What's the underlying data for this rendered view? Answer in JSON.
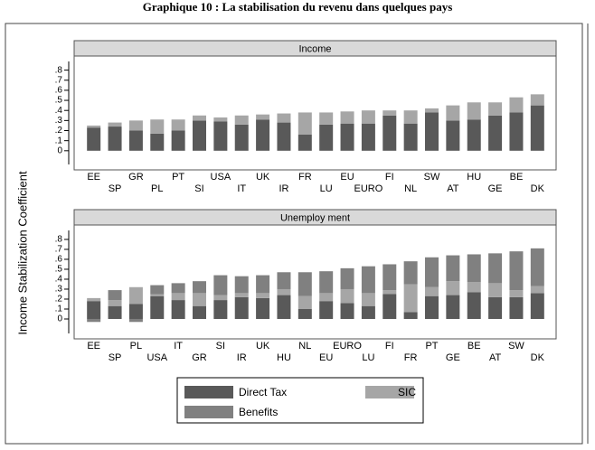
{
  "title": "Graphique 10 : La stabilisation du revenu dans quelques pays",
  "y_label": "Income Stabilization Coefficient",
  "chart_data": [
    {
      "type": "bar",
      "stacked": true,
      "title": "Income",
      "categories": [
        "EE",
        "SP",
        "GR",
        "PL",
        "PT",
        "SI",
        "USA",
        "IT",
        "UK",
        "IR",
        "FR",
        "LU",
        "EU",
        "EURO",
        "FI",
        "NL",
        "SW",
        "AT",
        "HU",
        "GE",
        "BE",
        "DK"
      ],
      "series": [
        {
          "name": "Direct Tax",
          "color": "#595959",
          "values": [
            0.23,
            0.24,
            0.2,
            0.17,
            0.2,
            0.3,
            0.29,
            0.26,
            0.31,
            0.28,
            0.16,
            0.26,
            0.27,
            0.27,
            0.35,
            0.27,
            0.38,
            0.3,
            0.31,
            0.35,
            0.38,
            0.45
          ]
        },
        {
          "name": "SIC",
          "color": "#a6a6a6",
          "values": [
            0.02,
            0.04,
            0.1,
            0.14,
            0.11,
            0.05,
            0.04,
            0.09,
            0.05,
            0.09,
            0.22,
            0.12,
            0.12,
            0.13,
            0.05,
            0.13,
            0.04,
            0.15,
            0.17,
            0.13,
            0.15,
            0.11
          ]
        }
      ],
      "ylim": [
        -0.19,
        0.94
      ],
      "yticks": [
        0,
        {
          "value": 0.1,
          "label": ".1"
        },
        {
          "value": 0.2,
          "label": ".2"
        },
        {
          "value": 0.3,
          "label": ".3"
        },
        {
          "value": 0.4,
          "label": ".4"
        },
        {
          "value": 0.5,
          "label": ".5"
        },
        {
          "value": 0.6,
          "label": ".6"
        },
        {
          "value": 0.7,
          "label": ".7"
        },
        {
          "value": 0.8,
          "label": ".8"
        }
      ]
    },
    {
      "type": "bar",
      "stacked": true,
      "title": "Unemploy ment",
      "categories": [
        "EE",
        "SP",
        "PL",
        "USA",
        "IT",
        "GR",
        "SI",
        "IR",
        "UK",
        "HU",
        "NL",
        "EU",
        "EURO",
        "LU",
        "FI",
        "FR",
        "PT",
        "GE",
        "BE",
        "AT",
        "SW",
        "DK"
      ],
      "series": [
        {
          "name": "Direct Tax",
          "color": "#595959",
          "values": [
            0.18,
            0.13,
            0.15,
            0.23,
            0.19,
            0.13,
            0.19,
            0.22,
            0.21,
            0.24,
            0.1,
            0.18,
            0.16,
            0.13,
            0.25,
            0.07,
            0.23,
            0.24,
            0.27,
            0.22,
            0.22,
            0.26
          ]
        },
        {
          "name": "SIC",
          "color": "#a6a6a6",
          "values": [
            0.03,
            0.06,
            0.17,
            0.02,
            0.07,
            0.13,
            0.05,
            0.04,
            0.05,
            0.06,
            0.13,
            0.08,
            0.14,
            0.13,
            0.04,
            0.28,
            0.09,
            0.14,
            0.1,
            0.14,
            0.07,
            0.07
          ]
        },
        {
          "name": "Benefits",
          "color": "#808080",
          "values": [
            -0.03,
            0.1,
            -0.03,
            0.09,
            0.1,
            0.12,
            0.2,
            0.17,
            0.18,
            0.17,
            0.24,
            0.22,
            0.21,
            0.27,
            0.26,
            0.23,
            0.3,
            0.26,
            0.28,
            0.3,
            0.39,
            0.38
          ]
        }
      ],
      "ylim": [
        -0.2,
        0.945
      ],
      "yticks": [
        0,
        {
          "value": 0.1,
          "label": ".1"
        },
        {
          "value": 0.2,
          "label": ".2"
        },
        {
          "value": 0.3,
          "label": ".3"
        },
        {
          "value": 0.4,
          "label": ".4"
        },
        {
          "value": 0.5,
          "label": ".5"
        },
        {
          "value": 0.6,
          "label": ".6"
        },
        {
          "value": 0.7,
          "label": ".7"
        },
        {
          "value": 0.8,
          "label": ".8"
        }
      ]
    }
  ]
}
